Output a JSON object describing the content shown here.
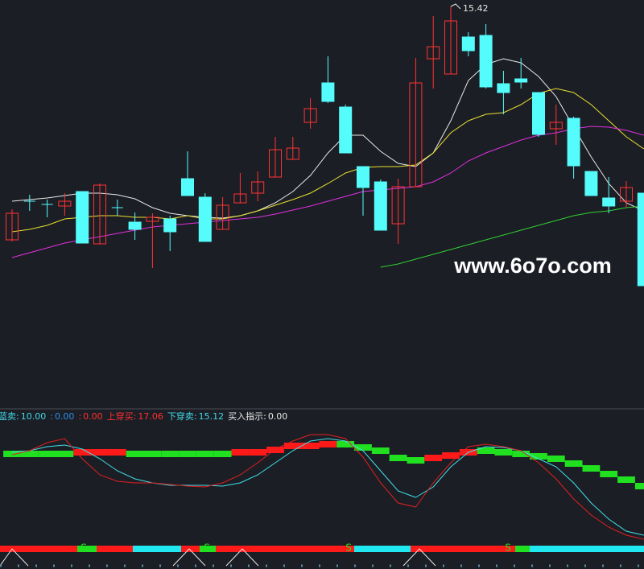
{
  "chart_data": [
    {
      "type": "candlestick",
      "open": [
        9.62,
        10.58,
        10.5,
        10.46,
        10.82,
        9.52,
        10.42,
        10.06,
        10.08,
        10.14,
        11.14,
        10.68,
        9.88,
        10.54,
        10.78,
        11.18,
        11.62,
        12.54,
        13.52,
        12.92,
        11.44,
        11.06,
        10.02,
        10.94,
        14.12,
        13.74,
        14.66,
        14.7,
        13.5,
        13.62,
        13.28,
        12.38,
        12.64,
        11.32,
        10.66,
        10.58,
        10.78
      ],
      "high": [
        10.38,
        10.74,
        10.62,
        10.78,
        10.82,
        11.02,
        10.62,
        10.3,
        10.28,
        10.22,
        11.82,
        10.78,
        10.68,
        11.28,
        11.32,
        12.18,
        12.18,
        13.14,
        14.18,
        12.98,
        11.44,
        11.12,
        11.14,
        14.14,
        15.18,
        15.42,
        14.78,
        14.98,
        13.82,
        14.14,
        13.28,
        12.98,
        12.68,
        11.32,
        11.18,
        11.08,
        10.78
      ],
      "low": [
        9.58,
        10.34,
        10.18,
        10.22,
        9.54,
        9.52,
        10.22,
        9.62,
        8.92,
        9.34,
        10.72,
        9.58,
        9.88,
        10.54,
        10.58,
        11.18,
        11.62,
        12.38,
        13.02,
        11.78,
        10.22,
        9.86,
        9.52,
        10.94,
        13.38,
        13.74,
        14.18,
        13.38,
        12.74,
        13.38,
        12.18,
        11.98,
        11.14,
        10.72,
        10.28,
        10.42,
        8.48
      ],
      "close": [
        10.28,
        10.58,
        10.5,
        10.58,
        9.54,
        10.98,
        10.42,
        9.88,
        10.18,
        9.82,
        10.72,
        9.58,
        10.48,
        10.76,
        11.06,
        11.86,
        11.9,
        12.88,
        13.06,
        11.78,
        10.92,
        9.86,
        10.94,
        13.52,
        14.42,
        15.06,
        14.32,
        13.42,
        13.28,
        13.54,
        12.24,
        12.54,
        11.46,
        10.72,
        10.46,
        10.92,
        8.48
      ],
      "up_color": "#ff3232",
      "down_color": "#54fcfc",
      "ylim": [
        5.58,
        15.58
      ],
      "series": [
        {
          "color": "#e8e8e8",
          "values": [
            10.58,
            10.62,
            10.66,
            10.72,
            10.78,
            10.78,
            10.74,
            10.64,
            10.42,
            10.28,
            10.22,
            10.18,
            10.16,
            10.22,
            10.34,
            10.54,
            10.82,
            11.22,
            11.78,
            12.22,
            12.22,
            11.82,
            11.52,
            11.44,
            11.78,
            12.58,
            13.58,
            13.98,
            14.12,
            14.02,
            13.68,
            13.18,
            12.42,
            11.68,
            11.02,
            10.54,
            10.34
          ]
        },
        {
          "color": "#e8e030",
          "values": [
            9.82,
            9.88,
            9.98,
            10.14,
            10.18,
            10.22,
            10.22,
            10.18,
            10.18,
            10.14,
            10.22,
            10.14,
            10.14,
            10.22,
            10.34,
            10.48,
            10.62,
            10.78,
            11.02,
            11.28,
            11.42,
            11.44,
            11.44,
            11.48,
            11.78,
            12.28,
            12.58,
            12.74,
            12.78,
            12.98,
            13.26,
            13.38,
            13.28,
            12.98,
            12.58,
            12.18,
            11.88
          ]
        },
        {
          "color": "#e030e0",
          "values": [
            9.18,
            9.3,
            9.42,
            9.54,
            9.62,
            9.7,
            9.78,
            9.86,
            9.94,
            9.98,
            10.02,
            10.06,
            10.1,
            10.14,
            10.18,
            10.26,
            10.36,
            10.46,
            10.58,
            10.7,
            10.82,
            10.86,
            10.9,
            10.94,
            11.06,
            11.28,
            11.58,
            11.78,
            11.94,
            12.1,
            12.22,
            12.28,
            12.38,
            12.44,
            12.42,
            12.34,
            12.22
          ]
        },
        {
          "color": "#30d030",
          "values": [
            null,
            null,
            null,
            null,
            null,
            null,
            null,
            null,
            null,
            null,
            null,
            null,
            null,
            null,
            null,
            null,
            null,
            null,
            null,
            null,
            null,
            8.94,
            9.02,
            9.14,
            9.26,
            9.38,
            9.5,
            9.62,
            9.74,
            9.86,
            9.98,
            10.1,
            10.22,
            10.3,
            10.34,
            10.42,
            10.46
          ]
        }
      ]
    },
    {
      "type": "line",
      "ylim": [
        0,
        150
      ],
      "series": [
        {
          "color": "#40e0e8",
          "values": [
            128,
            130,
            135,
            137,
            132,
            120,
            105,
            95,
            90,
            87,
            87,
            87,
            86,
            90,
            100,
            115,
            130,
            142,
            145,
            142,
            130,
            105,
            80,
            72,
            85,
            110,
            128,
            135,
            134,
            130,
            120,
            110,
            90,
            65,
            45,
            30,
            25
          ]
        },
        {
          "color": "#e02020",
          "values": [
            125,
            130,
            140,
            145,
            120,
            100,
            92,
            90,
            90,
            88,
            86,
            85,
            90,
            100,
            115,
            132,
            142,
            150,
            150,
            145,
            122,
            90,
            65,
            60,
            90,
            115,
            135,
            138,
            135,
            130,
            115,
            95,
            70,
            50,
            35,
            25,
            20
          ]
        }
      ],
      "band": {
        "values": [
          130,
          130,
          130,
          130,
          132,
          132,
          132,
          130,
          130,
          130,
          130,
          130,
          130,
          132,
          132,
          135,
          140,
          140,
          142,
          142,
          138,
          134,
          125,
          122,
          125,
          128,
          132,
          134,
          132,
          130,
          127,
          124,
          118,
          112,
          105,
          98,
          90
        ],
        "colors": [
          "#20e020",
          "#20e020",
          "#20e020",
          "#20e020",
          "#ff1a1a",
          "#ff1a1a",
          "#ff1a1a",
          "#20e020",
          "#20e020",
          "#20e020",
          "#20e020",
          "#20e020",
          "#20e020",
          "#ff1a1a",
          "#ff1a1a",
          "#ff1a1a",
          "#ff1a1a",
          "#ff1a1a",
          "#ff1a1a",
          "#20e020",
          "#20e020",
          "#20e020",
          "#20e020",
          "#20e020",
          "#ff1a1a",
          "#ff1a1a",
          "#ff1a1a",
          "#20e020",
          "#20e020",
          "#20e020",
          "#20e020",
          "#20e020",
          "#20e020",
          "#20e020",
          "#20e020",
          "#20e020",
          "#20e020"
        ]
      }
    }
  ],
  "legend": [
    {
      "text": "蓝卖:",
      "value": "10.00",
      "color": "#40d8e8"
    },
    {
      "text": ":",
      "value": "0.00",
      "color": "#2a8ee8"
    },
    {
      "text": ":",
      "value": "0.00",
      "color": "#ff3030"
    },
    {
      "text": "上穿买:",
      "value": "17.06",
      "color": "#ff3030"
    },
    {
      "text": "下穿卖:",
      "value": "15.12",
      "color": "#40d8e8"
    },
    {
      "text": "买入指示:",
      "value": "0.00",
      "color": "#e8e8e8"
    }
  ],
  "signals": [
    "S",
    "S",
    "S",
    "S"
  ],
  "watermark": "www.6o7o.com"
}
